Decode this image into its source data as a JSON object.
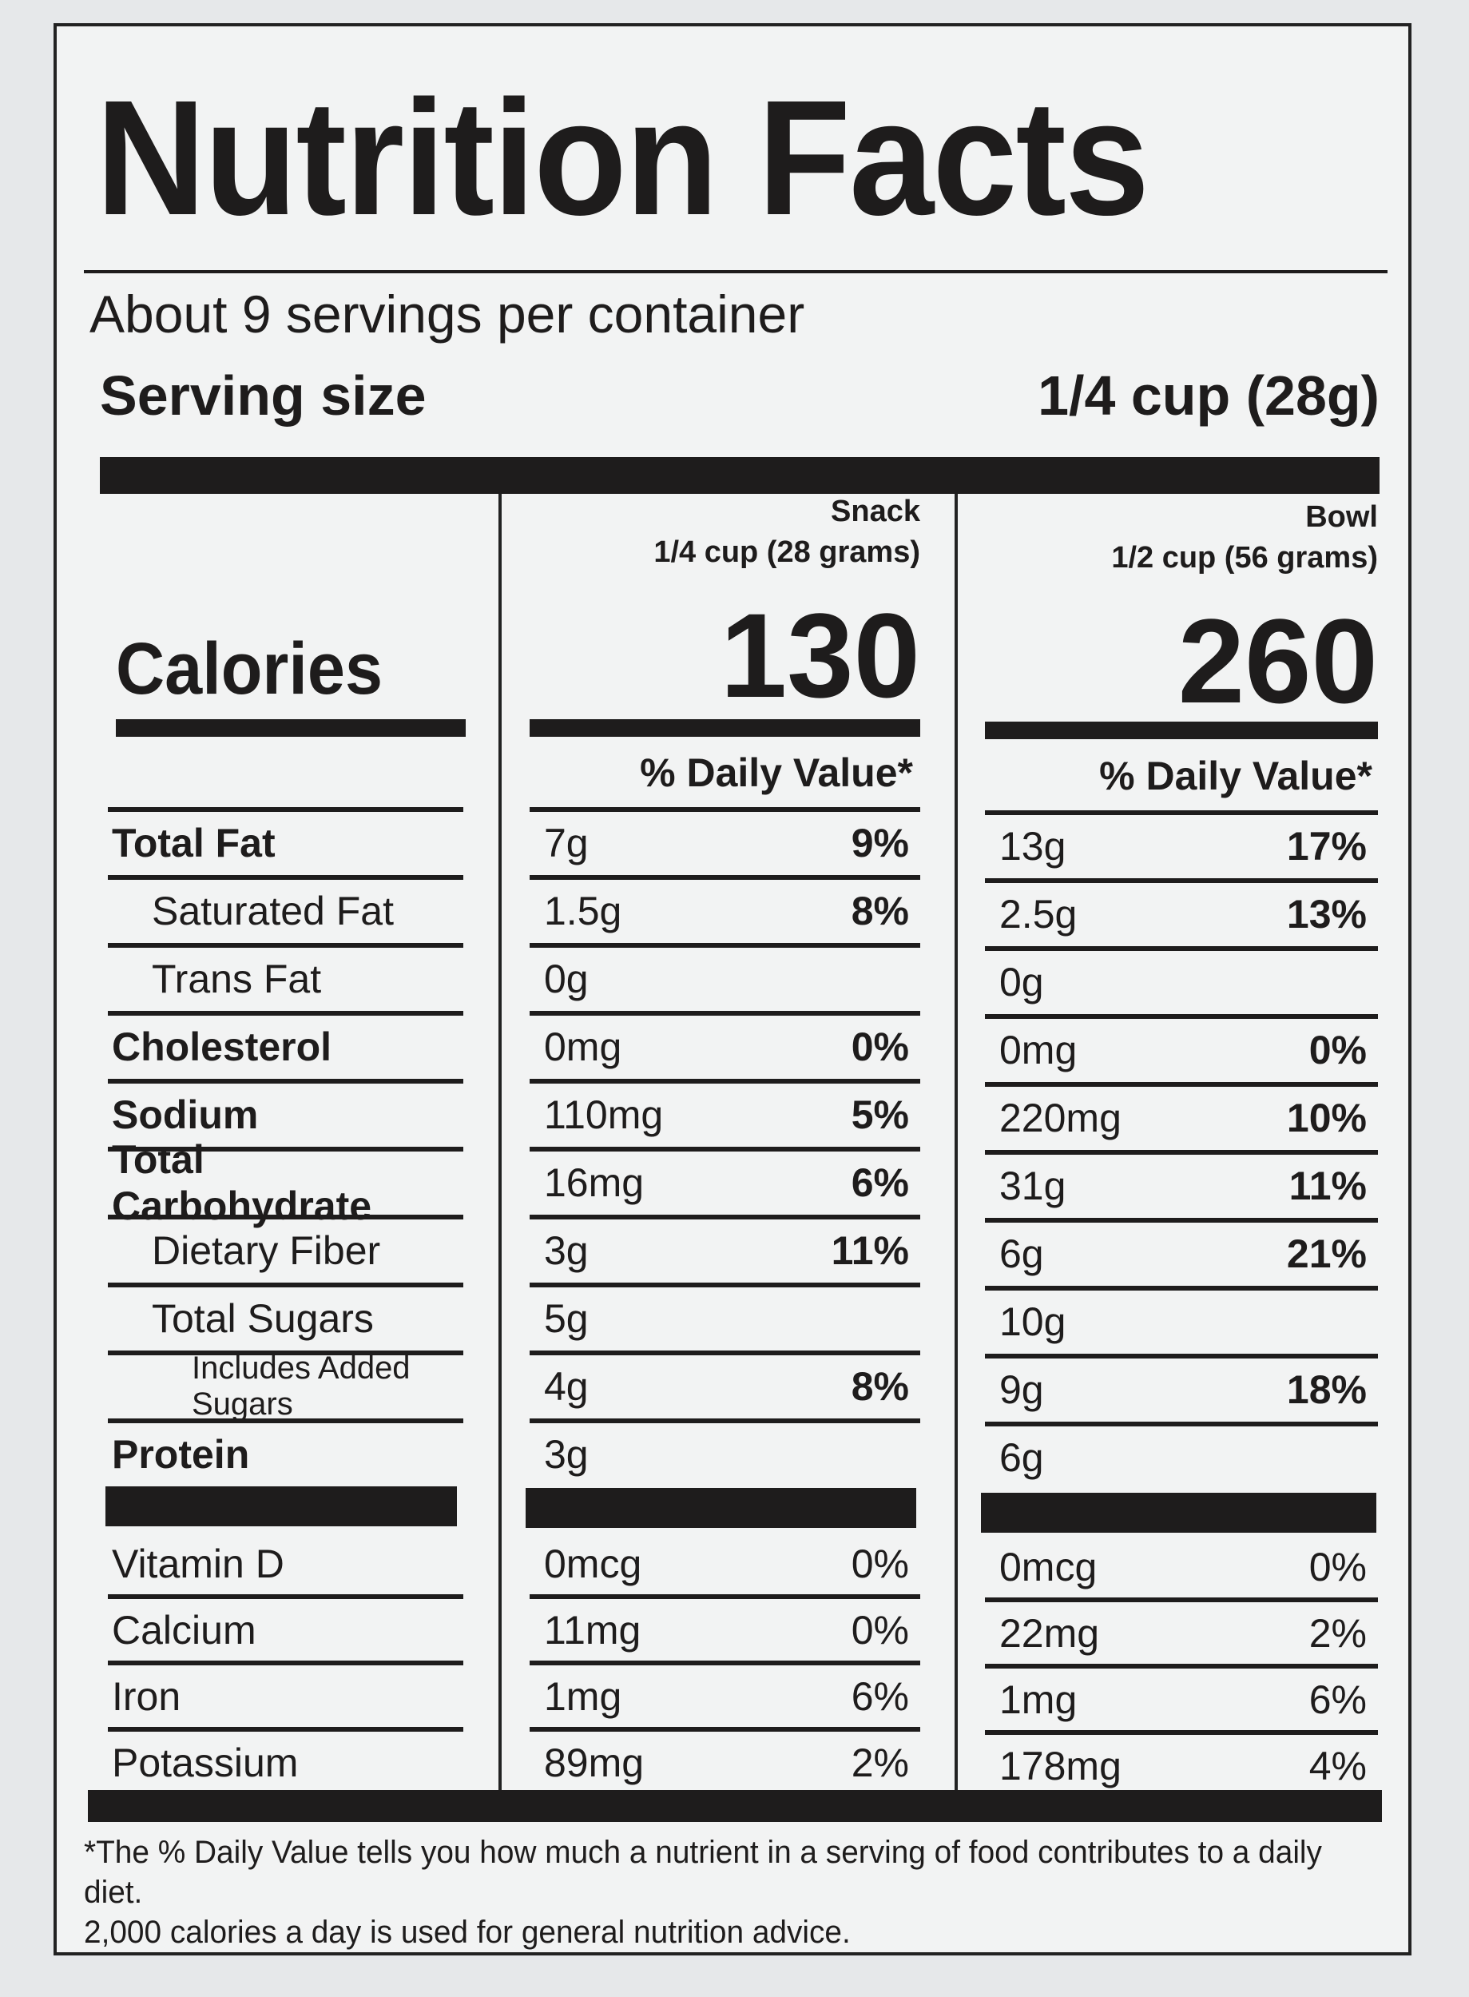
{
  "title": "Nutrition Facts",
  "servings_per_container": "About 9 servings per container",
  "serving_size_label": "Serving size",
  "serving_size_value": "1/4 cup (28g)",
  "columns": [
    {
      "name": "Snack",
      "amount": "1/4 cup (28 grams)",
      "calories": "130",
      "dv_header": "% Daily Value*"
    },
    {
      "name": "Bowl",
      "amount": "1/2 cup (56 grams)",
      "calories": "260",
      "dv_header": "% Daily Value*"
    }
  ],
  "calories_label": "Calories",
  "nutrients": [
    {
      "label": "Total Fat",
      "bold": true,
      "indent": 0,
      "snack": [
        "7g",
        "9%"
      ],
      "bowl": [
        "13g",
        "17%"
      ]
    },
    {
      "label": "Saturated Fat",
      "bold": false,
      "indent": 1,
      "snack": [
        "1.5g",
        "8%"
      ],
      "bowl": [
        "2.5g",
        "13%"
      ]
    },
    {
      "label": "Trans Fat",
      "bold": false,
      "indent": 1,
      "snack": [
        "0g",
        ""
      ],
      "bowl": [
        "0g",
        ""
      ]
    },
    {
      "label": "Cholesterol",
      "bold": true,
      "indent": 0,
      "snack": [
        "0mg",
        "0%"
      ],
      "bowl": [
        "0mg",
        "0%"
      ]
    },
    {
      "label": "Sodium",
      "bold": true,
      "indent": 0,
      "snack": [
        "110mg",
        "5%"
      ],
      "bowl": [
        "220mg",
        "10%"
      ]
    },
    {
      "label": "Total Carbohydrate",
      "bold": true,
      "indent": 0,
      "snack": [
        "16mg",
        "6%"
      ],
      "bowl": [
        "31g",
        "11%"
      ]
    },
    {
      "label": "Dietary Fiber",
      "bold": false,
      "indent": 1,
      "snack": [
        "3g",
        "11%"
      ],
      "bowl": [
        "6g",
        "21%"
      ]
    },
    {
      "label": "Total Sugars",
      "bold": false,
      "indent": 1,
      "snack": [
        "5g",
        ""
      ],
      "bowl": [
        "10g",
        ""
      ]
    },
    {
      "label": "Includes Added Sugars",
      "bold": false,
      "indent": 2,
      "snack": [
        "4g",
        "8%"
      ],
      "bowl": [
        "9g",
        "18%"
      ]
    },
    {
      "label": "Protein",
      "bold": true,
      "indent": 0,
      "snack": [
        "3g",
        ""
      ],
      "bowl": [
        "6g",
        ""
      ]
    }
  ],
  "vitamins": [
    {
      "label": "Vitamin D",
      "snack": [
        "0mcg",
        "0%"
      ],
      "bowl": [
        "0mcg",
        "0%"
      ]
    },
    {
      "label": "Calcium",
      "snack": [
        "11mg",
        "0%"
      ],
      "bowl": [
        "22mg",
        "2%"
      ]
    },
    {
      "label": "Iron",
      "snack": [
        "1mg",
        "6%"
      ],
      "bowl": [
        "1mg",
        "6%"
      ]
    },
    {
      "label": "Potassium",
      "snack": [
        "89mg",
        "2%"
      ],
      "bowl": [
        "178mg",
        "4%"
      ]
    }
  ],
  "footnote_line1": "*The % Daily Value tells you how much a nutrient in a serving of food contributes to a daily diet.",
  "footnote_line2": "2,000 calories a day is used for general nutrition advice."
}
